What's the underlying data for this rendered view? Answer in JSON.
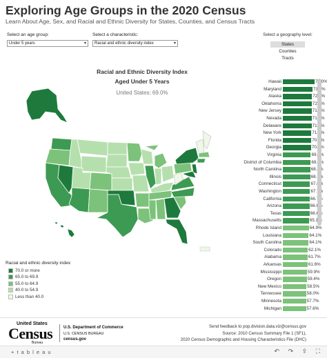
{
  "header": {
    "title": "Exploring Age Groups in the 2020 Census",
    "subtitle": "Learn About Age, Sex, and Racial and Ethnic Diversity for States, Counties, and Census Tracts"
  },
  "controls": {
    "age_group_label": "Select an age group:",
    "age_group_value": "Under 5 years",
    "characteristic_label": "Select a characteristic:",
    "characteristic_value": "Racial and ethnic diversity index",
    "geography_label": "Select a geography level:",
    "geography_options": [
      "States",
      "Counties",
      "Tracts"
    ],
    "geography_selected": "States"
  },
  "chart": {
    "title": "Racial and Ethnic Diversity Index",
    "subtitle": "Aged Under 5 Years",
    "national": "United States: 69.0%"
  },
  "chart_data": {
    "type": "bar",
    "orientation": "horizontal",
    "categories": [
      "Hawaii",
      "Maryland",
      "Alaska",
      "Oklahoma",
      "New Jersey",
      "Nevada",
      "Delaware",
      "New York",
      "Florida",
      "Georgia",
      "Virginia",
      "District of Columbia",
      "North Carolina",
      "Illinois",
      "Connecticut",
      "Washington",
      "California",
      "Arizona",
      "Texas",
      "Massachusetts",
      "Rhode Island",
      "Louisiana",
      "South Carolina",
      "Colorado",
      "Alabama",
      "Arkansas",
      "Mississippi",
      "Oregon",
      "New Mexico",
      "Tennessee",
      "Minnesota",
      "Michigan"
    ],
    "values": [
      79.0,
      73.4,
      72.6,
      72.0,
      71.7,
      71.7,
      71.5,
      71.0,
      70.9,
      70.1,
      69.5,
      69.3,
      68.3,
      68.1,
      67.8,
      67.7,
      66.7,
      66.6,
      66.6,
      65.1,
      64.9,
      64.1,
      64.1,
      62.1,
      61.7,
      61.6,
      59.9,
      59.4,
      58.5,
      58.0,
      57.7,
      57.6
    ],
    "labels": [
      "79.0%",
      "73.4%",
      "72.6%",
      "72.0%",
      "71.7%",
      "71.7%",
      "71.5%",
      "71.0%",
      "70.9%",
      "70.1%",
      "69.5%",
      "69.3%",
      "68.3%",
      "68.1%",
      "67.8%",
      "67.7%",
      "66.7%",
      "66.6%",
      "66.6%",
      "65.1%",
      "64.9%",
      "64.1%",
      "64.1%",
      "62.1%",
      "61.7%",
      "61.6%",
      "59.9%",
      "59.4%",
      "58.5%",
      "58.0%",
      "57.7%",
      "57.6%"
    ],
    "xlim": [
      0,
      79
    ]
  },
  "legend": {
    "title": "Racial and ethnic diversity index",
    "items": [
      {
        "label": "70.0 or more",
        "color": "#1e7a3c"
      },
      {
        "label": "65.0 to 69.9",
        "color": "#3d9a52"
      },
      {
        "label": "55.0 to 64.9",
        "color": "#7cc27a"
      },
      {
        "label": "40.0 to 54.9",
        "color": "#b6dfae"
      },
      {
        "label": "Less than 40.0",
        "color": "#eef7e8"
      }
    ]
  },
  "footer": {
    "logo_us": "United States",
    "logo_census": "Census",
    "logo_bureau": "Bureau",
    "dept_line1": "U.S. Department of Commerce",
    "dept_line2": "U.S. CENSUS BUREAU",
    "dept_line3": "census.gov",
    "feedback": "Send feedback to pop.division.data.viz@census.gov",
    "source1": "Source: 2010 Census Summary File 1 (SF1),",
    "source2": "2020 Census Demographic and Housing Characteristics File (DHC)",
    "tableau": "+ t a b l e a u"
  }
}
